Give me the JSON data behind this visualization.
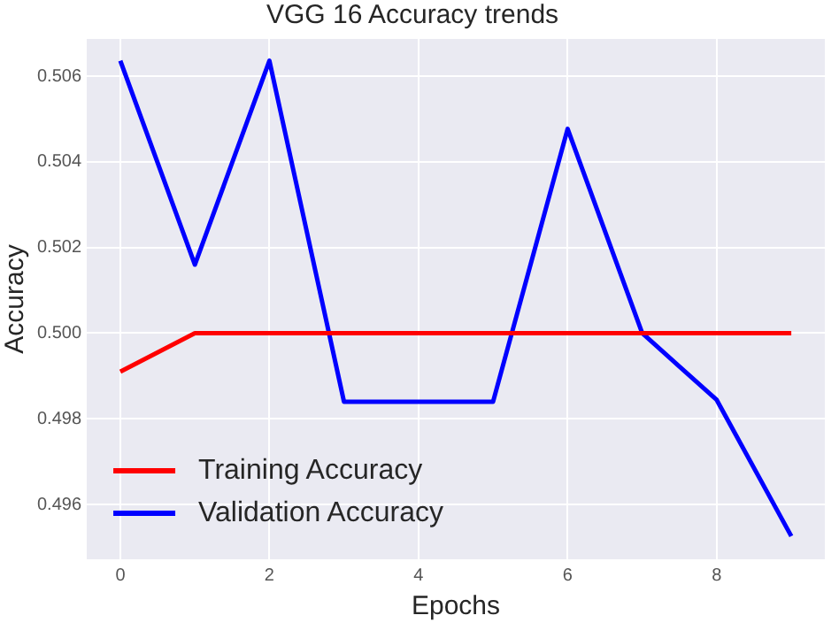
{
  "chart_data": {
    "type": "line",
    "title": "VGG 16 Accuracy trends",
    "xlabel": "Epochs",
    "ylabel": "Accuracy",
    "x": [
      0,
      1,
      2,
      3,
      4,
      5,
      6,
      7,
      8,
      9
    ],
    "series": [
      {
        "name": "Training Accuracy",
        "color": "#ff0000",
        "values": [
          0.4991,
          0.5,
          0.5,
          0.5,
          0.5,
          0.5,
          0.5,
          0.5,
          0.5,
          0.5
        ]
      },
      {
        "name": "Validation Accuracy",
        "color": "#0000ff",
        "values": [
          0.50636,
          0.5016,
          0.50636,
          0.4984,
          0.4984,
          0.4984,
          0.50477,
          0.5,
          0.49844,
          0.49526
        ]
      }
    ],
    "xlim": [
      -0.45,
      9.45
    ],
    "ylim": [
      0.49472,
      0.50687
    ],
    "xticks": [
      0,
      2,
      4,
      6,
      8
    ],
    "yticks": [
      0.496,
      0.498,
      {
        "value": 0.5,
        "label": "0.500"
      },
      0.502,
      0.504,
      0.506
    ],
    "grid": true,
    "legend": "bottom left",
    "marker": "none",
    "line_style": "solid"
  }
}
